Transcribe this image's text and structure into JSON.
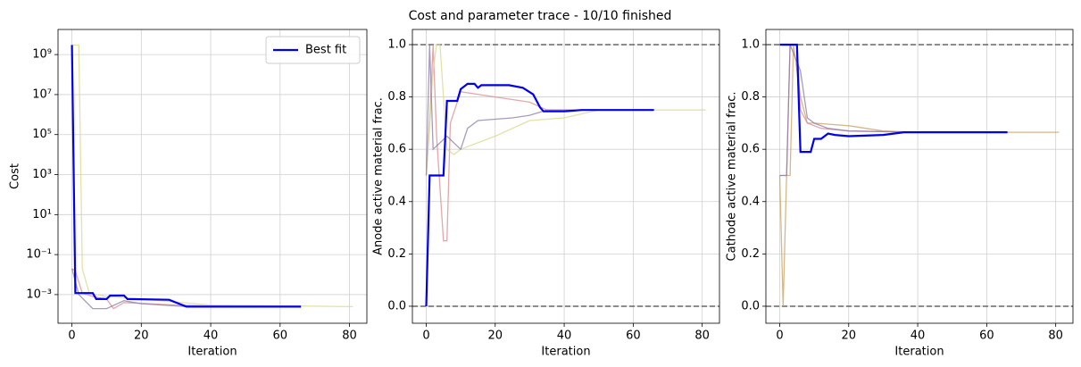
{
  "title": "Cost and parameter trace - 10/10 finished",
  "chart_data": [
    {
      "type": "line",
      "log_y": true,
      "xlabel": "Iteration",
      "ylabel": "Cost",
      "grid": true,
      "legend": "upper right",
      "xlim": [
        -4,
        85
      ],
      "xticks": [
        0,
        20,
        40,
        60,
        80
      ],
      "ylim": [
        3.7e-05,
        18000000000.0
      ],
      "yticks": [
        {
          "value": 0.001,
          "label": "10⁻³"
        },
        {
          "value": 0.1,
          "label": "10⁻¹"
        },
        {
          "value": 10,
          "label": "10¹"
        },
        {
          "value": 1000,
          "label": "10³"
        },
        {
          "value": 100000,
          "label": "10⁵"
        },
        {
          "value": 10000000.0,
          "label": "10⁷"
        },
        {
          "value": 1000000000.0,
          "label": "10⁹"
        }
      ],
      "series": [
        {
          "color": "#d98a90",
          "x": [
            0,
            1,
            3,
            6,
            10,
            12,
            15,
            30,
            50
          ],
          "values": [
            0.02,
            0.015,
            0.0012,
            0.0008,
            0.0006,
            0.0002,
            0.0004,
            0.0003,
            0.00025
          ]
        },
        {
          "color": "#d8d88a",
          "x": [
            0,
            2,
            3,
            5,
            10,
            20,
            40,
            81
          ],
          "values": [
            3000000000.0,
            3000000000.0,
            0.02,
            0.0012,
            0.0008,
            0.0006,
            0.0003,
            0.00025
          ]
        },
        {
          "color": "#8a7aa8",
          "x": [
            0,
            2,
            6,
            10,
            15,
            20,
            33,
            66
          ],
          "values": [
            0.02,
            0.001,
            0.0002,
            0.0002,
            0.0005,
            0.00035,
            0.00025,
            0.00025
          ]
        },
        {
          "name": "Best fit",
          "color": "#0000ee",
          "x": [
            0,
            1,
            6,
            7,
            10,
            11,
            15,
            16,
            28,
            33,
            66
          ],
          "values": [
            3000000000.0,
            0.0012,
            0.0012,
            0.0006,
            0.0006,
            0.0009,
            0.0009,
            0.0006,
            0.00055,
            0.00025,
            0.00025
          ]
        }
      ]
    },
    {
      "type": "line",
      "xlabel": "Iteration",
      "ylabel": "Anode active material frac.",
      "grid": true,
      "xlim": [
        -4,
        85
      ],
      "xticks": [
        0,
        20,
        40,
        60,
        80
      ],
      "ylim": [
        -0.065,
        1.058
      ],
      "yticks": [
        {
          "value": 0,
          "label": "0.0"
        },
        0.2,
        0.4,
        0.6,
        0.8,
        {
          "value": 1,
          "label": "1.0"
        }
      ],
      "hlines": [
        0,
        1
      ],
      "series": [
        {
          "color": "#d98a90",
          "x": [
            0,
            1,
            2,
            3,
            5,
            6,
            7,
            10,
            20,
            30,
            35,
            50
          ],
          "values": [
            0.5,
            0.7,
            1.0,
            0.65,
            0.25,
            0.25,
            0.7,
            0.82,
            0.8,
            0.78,
            0.75,
            0.75
          ]
        },
        {
          "color": "#d8d88a",
          "x": [
            0,
            2,
            3,
            4,
            6,
            8,
            10,
            20,
            30,
            40,
            50,
            81
          ],
          "values": [
            0.5,
            0.9,
            1.0,
            1.0,
            0.6,
            0.58,
            0.6,
            0.65,
            0.71,
            0.72,
            0.75,
            0.75
          ]
        },
        {
          "color": "#8a7aa8",
          "x": [
            0,
            1,
            2,
            6,
            10,
            12,
            15,
            25,
            30,
            35,
            66
          ],
          "values": [
            0.5,
            1.0,
            0.6,
            0.65,
            0.6,
            0.68,
            0.71,
            0.72,
            0.73,
            0.75,
            0.75
          ]
        },
        {
          "name": "Best fit",
          "color": "#0000ee",
          "x": [
            0,
            1,
            5,
            6,
            9,
            10,
            12,
            14,
            15,
            16,
            24,
            28,
            31,
            33,
            34,
            40,
            45,
            66
          ],
          "values": [
            0,
            0.5,
            0.5,
            0.785,
            0.785,
            0.83,
            0.85,
            0.85,
            0.835,
            0.845,
            0.845,
            0.835,
            0.81,
            0.76,
            0.745,
            0.745,
            0.75,
            0.75
          ]
        }
      ]
    },
    {
      "type": "line",
      "xlabel": "Iteration",
      "ylabel": "Cathode active material frac.",
      "grid": true,
      "xlim": [
        -4,
        85
      ],
      "xticks": [
        0,
        20,
        40,
        60,
        80
      ],
      "ylim": [
        -0.065,
        1.058
      ],
      "yticks": [
        {
          "value": 0,
          "label": "0.0"
        },
        0.2,
        0.4,
        0.6,
        0.8,
        {
          "value": 1,
          "label": "1.0"
        }
      ],
      "hlines": [
        0,
        1
      ],
      "series": [
        {
          "color": "#c8a060",
          "x": [
            0,
            1,
            2,
            3,
            4,
            6,
            8,
            10,
            20,
            30,
            40,
            81
          ],
          "values": [
            0.5,
            0,
            0.5,
            0.5,
            1.0,
            0.8,
            0.7,
            0.7,
            0.69,
            0.67,
            0.665,
            0.665
          ]
        },
        {
          "color": "#d98a90",
          "x": [
            0,
            2,
            3,
            5,
            6,
            8,
            12,
            20,
            40,
            66
          ],
          "values": [
            0.5,
            0.5,
            1.0,
            1.0,
            0.75,
            0.7,
            0.68,
            0.67,
            0.665,
            0.665
          ]
        },
        {
          "color": "#8a7aa8",
          "x": [
            0,
            2,
            3,
            6,
            8,
            10,
            14,
            20,
            40,
            66
          ],
          "values": [
            0.5,
            0.5,
            1.0,
            0.9,
            0.72,
            0.7,
            0.68,
            0.67,
            0.665,
            0.665
          ]
        },
        {
          "name": "Best fit",
          "color": "#0000ee",
          "x": [
            0,
            5,
            6,
            9,
            10,
            12,
            14,
            16,
            20,
            30,
            33,
            36,
            66
          ],
          "values": [
            1.0,
            1.0,
            0.59,
            0.59,
            0.64,
            0.64,
            0.66,
            0.655,
            0.65,
            0.655,
            0.66,
            0.665,
            0.665
          ]
        }
      ]
    }
  ]
}
